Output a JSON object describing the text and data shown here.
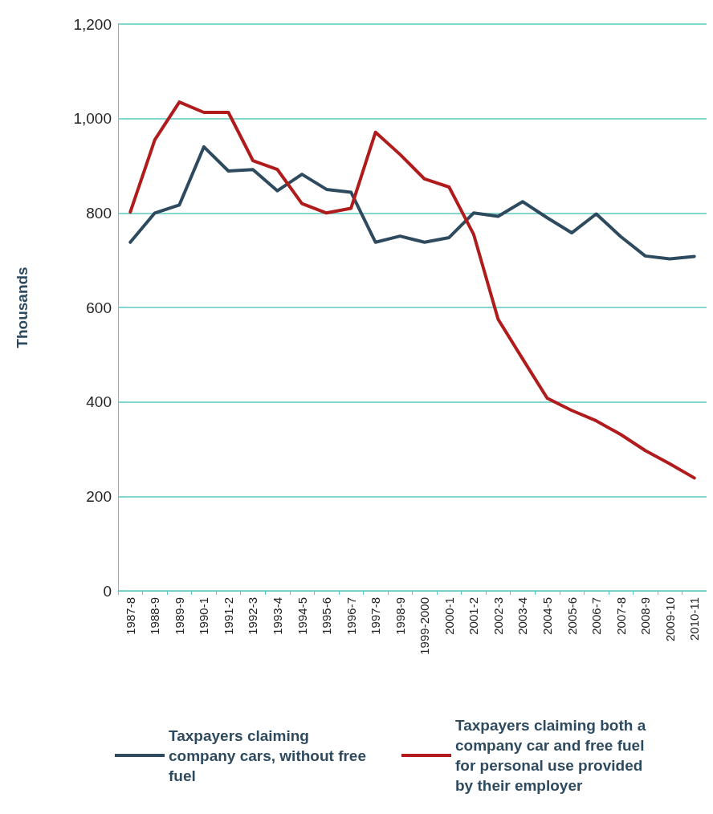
{
  "chart_data": {
    "type": "line",
    "ylabel": "Thousands",
    "categories": [
      "1987-8",
      "1988-9",
      "1989-9",
      "1990-1",
      "1991-2",
      "1992-3",
      "1993-4",
      "1994-5",
      "1995-6",
      "1996-7",
      "1997-8",
      "1998-9",
      "1999-2000",
      "2000-1",
      "2001-2",
      "2002-3",
      "2003-4",
      "2004-5",
      "2005-6",
      "2006-7",
      "2007-8",
      "2008-9",
      "2009-10",
      "2010-11"
    ],
    "series": [
      {
        "name": "Taxpayers claiming company cars, without free fuel",
        "color": "#2e4a5f",
        "values": [
          738,
          800,
          817,
          940,
          889,
          892,
          847,
          882,
          850,
          844,
          738,
          751,
          738,
          748,
          800,
          793,
          824,
          790,
          758,
          798,
          750,
          709,
          703,
          708
        ]
      },
      {
        "name": "Taxpayers claiming both a company car and free fuel for personal use provided by their employer",
        "color": "#b01c1c",
        "values": [
          802,
          955,
          1035,
          1013,
          1013,
          911,
          892,
          820,
          800,
          810,
          971,
          924,
          872,
          855,
          755,
          575,
          491,
          408,
          382,
          360,
          331,
          297,
          269,
          239
        ]
      }
    ],
    "ylim": [
      0,
      1200
    ],
    "yticks": [
      0,
      200,
      400,
      600,
      800,
      {
        "value": 1000,
        "label": "1,000"
      },
      {
        "value": 1200,
        "label": "1,200"
      }
    ],
    "grid": "y",
    "legend": "bottom",
    "marker": "none",
    "line_style": "solid"
  }
}
